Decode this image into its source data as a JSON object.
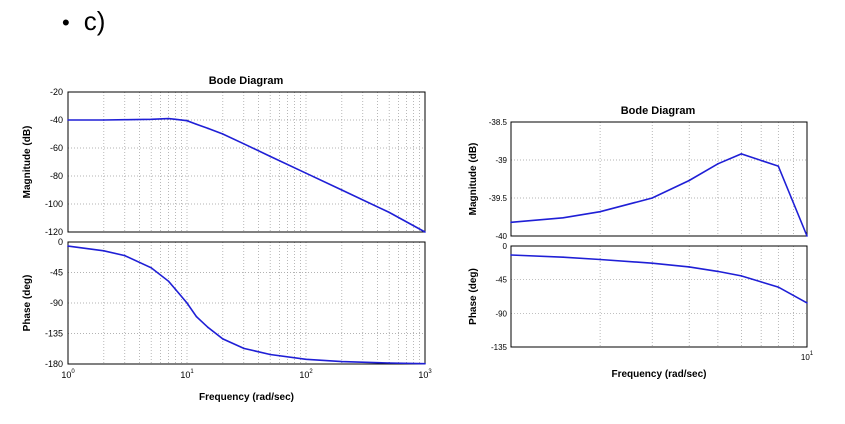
{
  "slide": {
    "bullet": "•",
    "label": "c)"
  },
  "chart_data": [
    {
      "type": "line",
      "title": "Bode Diagram",
      "xlabel": "Frequency  (rad/sec)",
      "xscale": "log",
      "xlim": [
        1,
        1000
      ],
      "xticks": [
        {
          "base": "10",
          "exp": "0"
        },
        {
          "base": "10",
          "exp": "1"
        },
        {
          "base": "10",
          "exp": "2"
        },
        {
          "base": "10",
          "exp": "3"
        }
      ],
      "grid": true,
      "color": "#1f1fd6",
      "magnitude": {
        "ylabel": "Magnitude (dB)",
        "ylim": [
          -120,
          -20
        ],
        "yticks": [
          "-20",
          "-40",
          "-60",
          "-80",
          "-100",
          "-120"
        ],
        "x": [
          1,
          2,
          3,
          5,
          7,
          8,
          10,
          12,
          15,
          20,
          30,
          50,
          100,
          200,
          500,
          1000
        ],
        "y": [
          -40,
          -40,
          -39.8,
          -39.5,
          -39,
          -39.5,
          -40.5,
          -43,
          -46,
          -50,
          -57,
          -66,
          -78,
          -90,
          -106,
          -120
        ]
      },
      "phase": {
        "ylabel": "Phase (deg)",
        "ylim": [
          -180,
          0
        ],
        "yticks": [
          "0",
          "-45",
          "-90",
          "-135",
          "-180"
        ],
        "x": [
          1,
          2,
          3,
          5,
          7,
          8,
          10,
          12,
          15,
          20,
          30,
          50,
          100,
          200,
          500,
          1000
        ],
        "y": [
          -6,
          -13,
          -20,
          -38,
          -58,
          -70,
          -90,
          -110,
          -126,
          -143,
          -157,
          -166,
          -173,
          -176.5,
          -178.5,
          -179.5
        ]
      }
    },
    {
      "type": "line",
      "title": "Bode Diagram",
      "xlabel": "Frequency  (rad/sec)",
      "xscale": "log",
      "xlim": [
        1,
        10
      ],
      "xticks": [
        {
          "base": "10",
          "exp": "1"
        }
      ],
      "grid": true,
      "color": "#1f1fd6",
      "magnitude": {
        "ylabel": "Magnitude (dB)",
        "ylim": [
          -40,
          -38.5
        ],
        "yticks": [
          "-38.5",
          "-39",
          "-39.5",
          "-40"
        ],
        "x": [
          1,
          1.5,
          2,
          3,
          4,
          5,
          6,
          8,
          10
        ],
        "y": [
          -39.82,
          -39.76,
          -39.68,
          -39.5,
          -39.27,
          -39.05,
          -38.92,
          -39.08,
          -40
        ]
      },
      "phase": {
        "ylabel": "Phase (deg)",
        "ylim": [
          -135,
          0
        ],
        "yticks": [
          "0",
          "-45",
          "-90",
          "-135"
        ],
        "x": [
          1,
          1.5,
          2,
          3,
          4,
          5,
          6,
          8,
          10
        ],
        "y": [
          -12,
          -15,
          -18,
          -23,
          -28,
          -34,
          -40,
          -55,
          -76
        ]
      }
    }
  ]
}
